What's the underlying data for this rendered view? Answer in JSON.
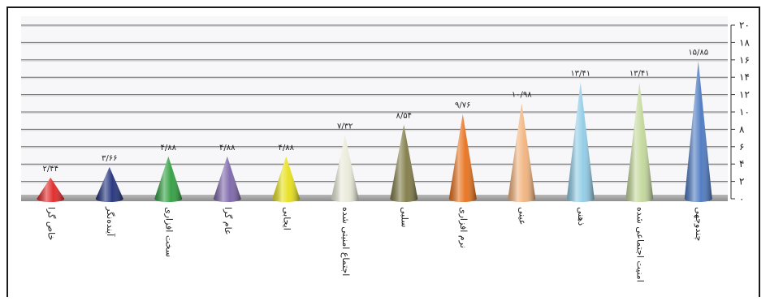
{
  "chart_data": {
    "type": "bar",
    "shape": "cone",
    "categories": [
      "خاص گرا",
      "آینده‌نگر",
      "سخت افزاری",
      "عام گرا",
      "ایجابی",
      "اجتماع امنیتی شده",
      "سلبی",
      "نرم افزاری",
      "عینی",
      "ذهنی",
      "امنیت اجتماعی شده",
      "چندوجهی"
    ],
    "values": [
      2.44,
      3.66,
      4.88,
      4.88,
      4.88,
      7.32,
      8.54,
      9.76,
      10.98,
      13.41,
      13.41,
      15.85
    ],
    "value_labels": [
      "۲/۴۴",
      "۳/۶۶",
      "۴/۸۸",
      "۴/۸۸",
      "۴/۸۸",
      "۷/۳۲",
      "۸/۵۴",
      "۹/۷۶",
      "۱۰/۹۸",
      "۱۳/۴۱",
      "۱۳/۴۱",
      "۱۵/۸۵"
    ],
    "colors": [
      "#e02424",
      "#1f2f7a",
      "#2e9e3e",
      "#7b64a8",
      "#e6e018",
      "#e9ead8",
      "#7f7a45",
      "#e7701a",
      "#f2b27c",
      "#8fcbe6",
      "#c3d89a",
      "#4a78c0"
    ],
    "ylim": [
      0,
      20
    ],
    "y_ticks": [
      0,
      2,
      4,
      6,
      8,
      10,
      12,
      14,
      16,
      18,
      20
    ],
    "y_tick_labels": [
      "۰",
      "۲",
      "۴",
      "۶",
      "۸",
      "۱۰",
      "۱۲",
      "۱۴",
      "۱۶",
      "۱۸",
      "۲۰"
    ],
    "y_axis_position": "right",
    "grid": true,
    "title": "",
    "xlabel": "",
    "ylabel": ""
  }
}
